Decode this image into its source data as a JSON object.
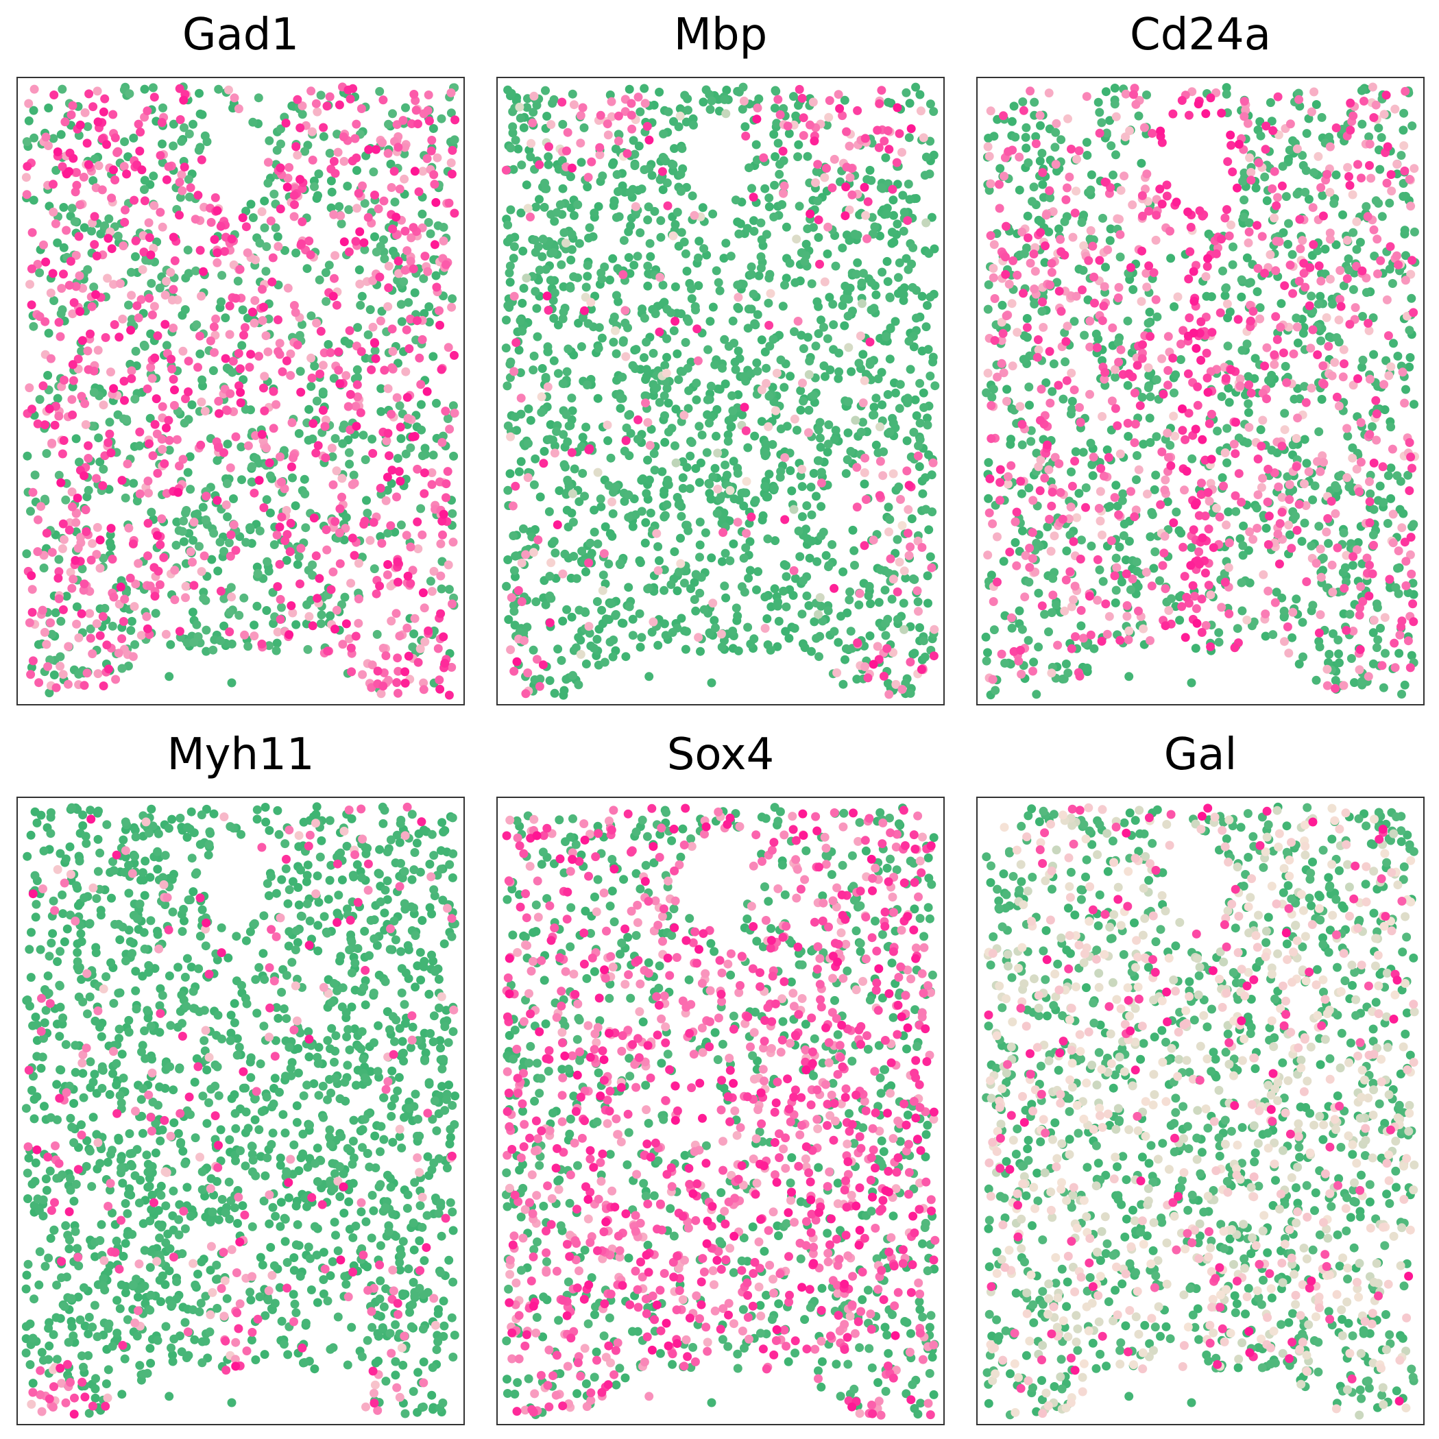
{
  "chart_data": [
    {
      "type": "scatter",
      "title": "Gad1",
      "pattern": "gad1",
      "seed": 11,
      "xlabel": "",
      "ylabel": "",
      "grid": false,
      "colormap": [
        "#3cb371",
        "#f5e3d6",
        "#ff1493"
      ]
    },
    {
      "type": "scatter",
      "title": "Mbp",
      "pattern": "mbp",
      "seed": 23,
      "xlabel": "",
      "ylabel": "",
      "grid": false,
      "colormap": [
        "#3cb371",
        "#f5e3d6",
        "#ff1493"
      ]
    },
    {
      "type": "scatter",
      "title": "Cd24a",
      "pattern": "cd24a",
      "seed": 37,
      "xlabel": "",
      "ylabel": "",
      "grid": false,
      "colormap": [
        "#3cb371",
        "#f5e3d6",
        "#ff1493"
      ]
    },
    {
      "type": "scatter",
      "title": "Myh11",
      "pattern": "myh11",
      "seed": 41,
      "xlabel": "",
      "ylabel": "",
      "grid": false,
      "colormap": [
        "#3cb371",
        "#f5e3d6",
        "#ff1493"
      ]
    },
    {
      "type": "scatter",
      "title": "Sox4",
      "pattern": "sox4",
      "seed": 53,
      "xlabel": "",
      "ylabel": "",
      "grid": false,
      "colormap": [
        "#3cb371",
        "#f5e3d6",
        "#ff1493"
      ]
    },
    {
      "type": "scatter",
      "title": "Gal",
      "pattern": "gal",
      "seed": 67,
      "xlabel": "",
      "ylabel": "",
      "grid": false,
      "colormap": [
        "#3cb371",
        "#f5e3d6",
        "#ff1493"
      ]
    }
  ]
}
